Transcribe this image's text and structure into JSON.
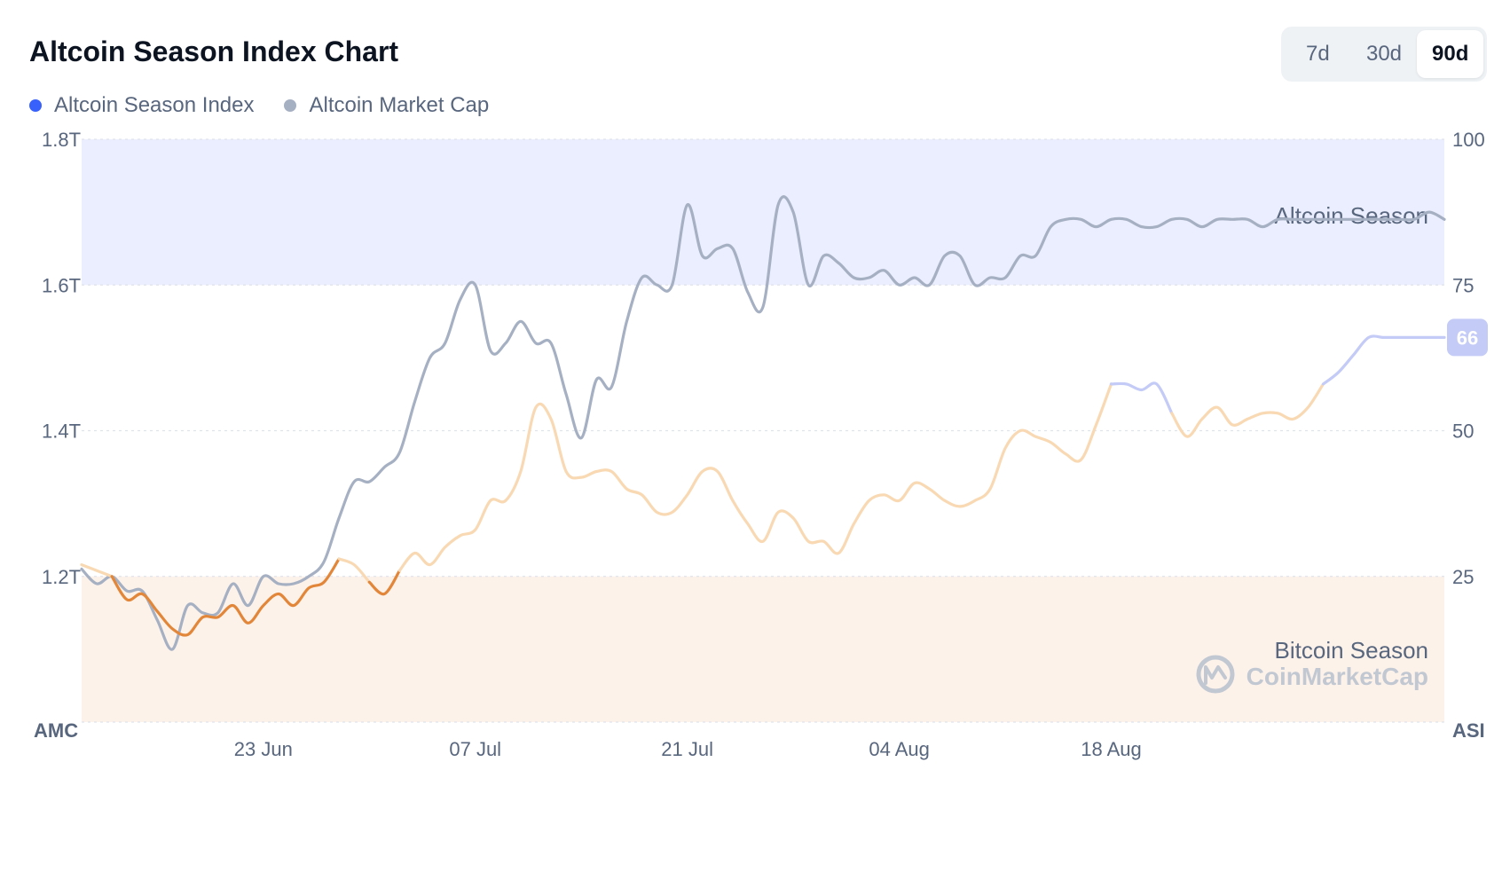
{
  "header": {
    "title": "Altcoin Season Index Chart"
  },
  "legend": [
    {
      "label": "Altcoin Season Index",
      "color": "#3861fb"
    },
    {
      "label": "Altcoin Market Cap",
      "color": "#a6b0c3"
    }
  ],
  "timeframes": [
    {
      "label": "7d",
      "active": false
    },
    {
      "label": "30d",
      "active": false
    },
    {
      "label": "90d",
      "active": true
    }
  ],
  "zones": {
    "altcoin": "Altcoin Season",
    "bitcoin": "Bitcoin Season"
  },
  "watermark": "CoinMarketCap",
  "axis_titles": {
    "left": "AMC",
    "right": "ASI"
  },
  "current_badge": "66",
  "colors": {
    "altcoin_zone": "#ebeefe",
    "bitcoin_zone": "#fdf2ea",
    "market_cap_line": "#a6b0c3",
    "index_bitcoin": "#e2873a",
    "index_neutral": "#f8d9b3",
    "index_altcoin": "#c3cbf6",
    "badge": "#c3cbf6"
  },
  "chart_data": {
    "type": "line",
    "title": "Altcoin Season Index Chart",
    "x_ticks": [
      "23 Jun",
      "07 Jul",
      "21 Jul",
      "04 Aug",
      "18 Aug"
    ],
    "x_tick_days": [
      12,
      26,
      40,
      54,
      68
    ],
    "x_range_days": [
      0,
      90
    ],
    "y_left": {
      "label": "AMC",
      "ticks": [
        "1.8T",
        "1.6T",
        "1.4T",
        "1.2T"
      ],
      "range_T": [
        1.0,
        1.8
      ]
    },
    "y_right": {
      "label": "ASI",
      "ticks": [
        "100",
        "75",
        "50",
        "25"
      ],
      "range": [
        0,
        100
      ]
    },
    "thresholds": {
      "altcoin_season": 75,
      "bitcoin_season": 25
    },
    "grid": true,
    "legend_position": "top-left",
    "series": [
      {
        "name": "Altcoin Season Index",
        "axis": "right",
        "x_days": [
          0,
          1,
          2,
          3,
          4,
          5,
          6,
          7,
          8,
          9,
          10,
          11,
          12,
          13,
          14,
          15,
          16,
          17,
          18,
          19,
          20,
          21,
          22,
          23,
          24,
          25,
          26,
          27,
          28,
          29,
          30,
          31,
          32,
          33,
          34,
          35,
          36,
          37,
          38,
          39,
          40,
          41,
          42,
          43,
          44,
          45,
          46,
          47,
          48,
          49,
          50,
          51,
          52,
          53,
          54,
          55,
          56,
          57,
          58,
          59,
          60,
          61,
          62,
          63,
          64,
          65,
          66,
          67,
          68,
          69,
          70,
          71,
          72,
          73,
          74,
          75,
          76,
          77,
          78,
          79,
          80,
          81,
          82,
          83,
          84,
          85,
          86,
          87,
          88,
          89,
          90
        ],
        "values": [
          27,
          26,
          25,
          21,
          22,
          19,
          16,
          15,
          18,
          18,
          20,
          17,
          20,
          22,
          20,
          23,
          24,
          28,
          27,
          24,
          22,
          26,
          29,
          27,
          30,
          32,
          33,
          38,
          38,
          43,
          54,
          52,
          43,
          42,
          43,
          43,
          40,
          39,
          36,
          36,
          39,
          43,
          43,
          38,
          34,
          31,
          36,
          35,
          31,
          31,
          29,
          34,
          38,
          39,
          38,
          41,
          40,
          38,
          37,
          38,
          40,
          47,
          50,
          49,
          48,
          46,
          45,
          51,
          58,
          58,
          57,
          58,
          53,
          49,
          52,
          54,
          51,
          52,
          53,
          53,
          52,
          54,
          58,
          60,
          63,
          66,
          66,
          66,
          66,
          66,
          66
        ]
      },
      {
        "name": "Altcoin Market Cap",
        "axis": "left",
        "x_days": [
          0,
          1,
          2,
          3,
          4,
          5,
          6,
          7,
          8,
          9,
          10,
          11,
          12,
          13,
          14,
          15,
          16,
          17,
          18,
          19,
          20,
          21,
          22,
          23,
          24,
          25,
          26,
          27,
          28,
          29,
          30,
          31,
          32,
          33,
          34,
          35,
          36,
          37,
          38,
          39,
          40,
          41,
          42,
          43,
          44,
          45,
          46,
          47,
          48,
          49,
          50,
          51,
          52,
          53,
          54,
          55,
          56,
          57,
          58,
          59,
          60,
          61,
          62,
          63,
          64,
          65,
          66,
          67,
          68,
          69,
          70,
          71,
          72,
          73,
          74,
          75,
          76,
          77,
          78,
          79,
          80,
          81,
          82,
          83,
          84,
          85,
          86,
          87,
          88,
          89,
          90
        ],
        "values_T": [
          1.21,
          1.19,
          1.2,
          1.18,
          1.18,
          1.14,
          1.1,
          1.16,
          1.15,
          1.15,
          1.19,
          1.16,
          1.2,
          1.19,
          1.19,
          1.2,
          1.22,
          1.28,
          1.33,
          1.33,
          1.35,
          1.37,
          1.44,
          1.5,
          1.52,
          1.58,
          1.6,
          1.51,
          1.52,
          1.55,
          1.52,
          1.52,
          1.45,
          1.39,
          1.47,
          1.46,
          1.55,
          1.61,
          1.6,
          1.6,
          1.71,
          1.64,
          1.65,
          1.65,
          1.59,
          1.57,
          1.71,
          1.7,
          1.6,
          1.64,
          1.63,
          1.61,
          1.61,
          1.62,
          1.6,
          1.61,
          1.6,
          1.64,
          1.64,
          1.6,
          1.61,
          1.61,
          1.64,
          1.64,
          1.68,
          1.69,
          1.69,
          1.68,
          1.69,
          1.69,
          1.68,
          1.68,
          1.69,
          1.69,
          1.68,
          1.69,
          1.69,
          1.69,
          1.68,
          1.69,
          1.69,
          1.69,
          1.69,
          1.69,
          1.69,
          1.69,
          1.69,
          1.69,
          1.69,
          1.7,
          1.69
        ]
      }
    ]
  }
}
